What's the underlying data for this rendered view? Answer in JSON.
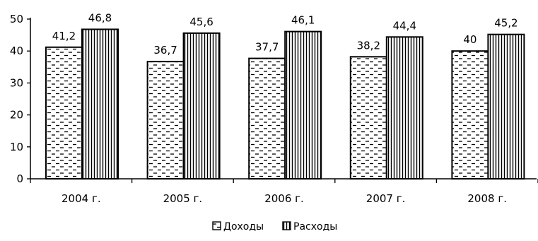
{
  "chart_data": {
    "type": "bar",
    "categories": [
      "2004 г.",
      "2005 г.",
      "2006 г.",
      "2007 г.",
      "2008 г."
    ],
    "series": [
      {
        "name": "Доходы",
        "values": [
          41.2,
          36.7,
          37.7,
          38.2,
          40
        ],
        "labels": [
          "41,2",
          "36,7",
          "37,7",
          "38,2",
          "40"
        ],
        "pattern": "horizontal-dashes"
      },
      {
        "name": "Расходы",
        "values": [
          46.8,
          45.6,
          46.1,
          44.4,
          45.2
        ],
        "labels": [
          "46,8",
          "45,6",
          "46,1",
          "44,4",
          "45,2"
        ],
        "pattern": "vertical-lines"
      }
    ],
    "yticks": [
      "0",
      "10",
      "20",
      "30",
      "40",
      "50"
    ],
    "ylim": [
      0,
      50
    ],
    "grid": false,
    "legend": "bottom-center",
    "bar_fill": "#ffffff",
    "ink": "#000000"
  }
}
